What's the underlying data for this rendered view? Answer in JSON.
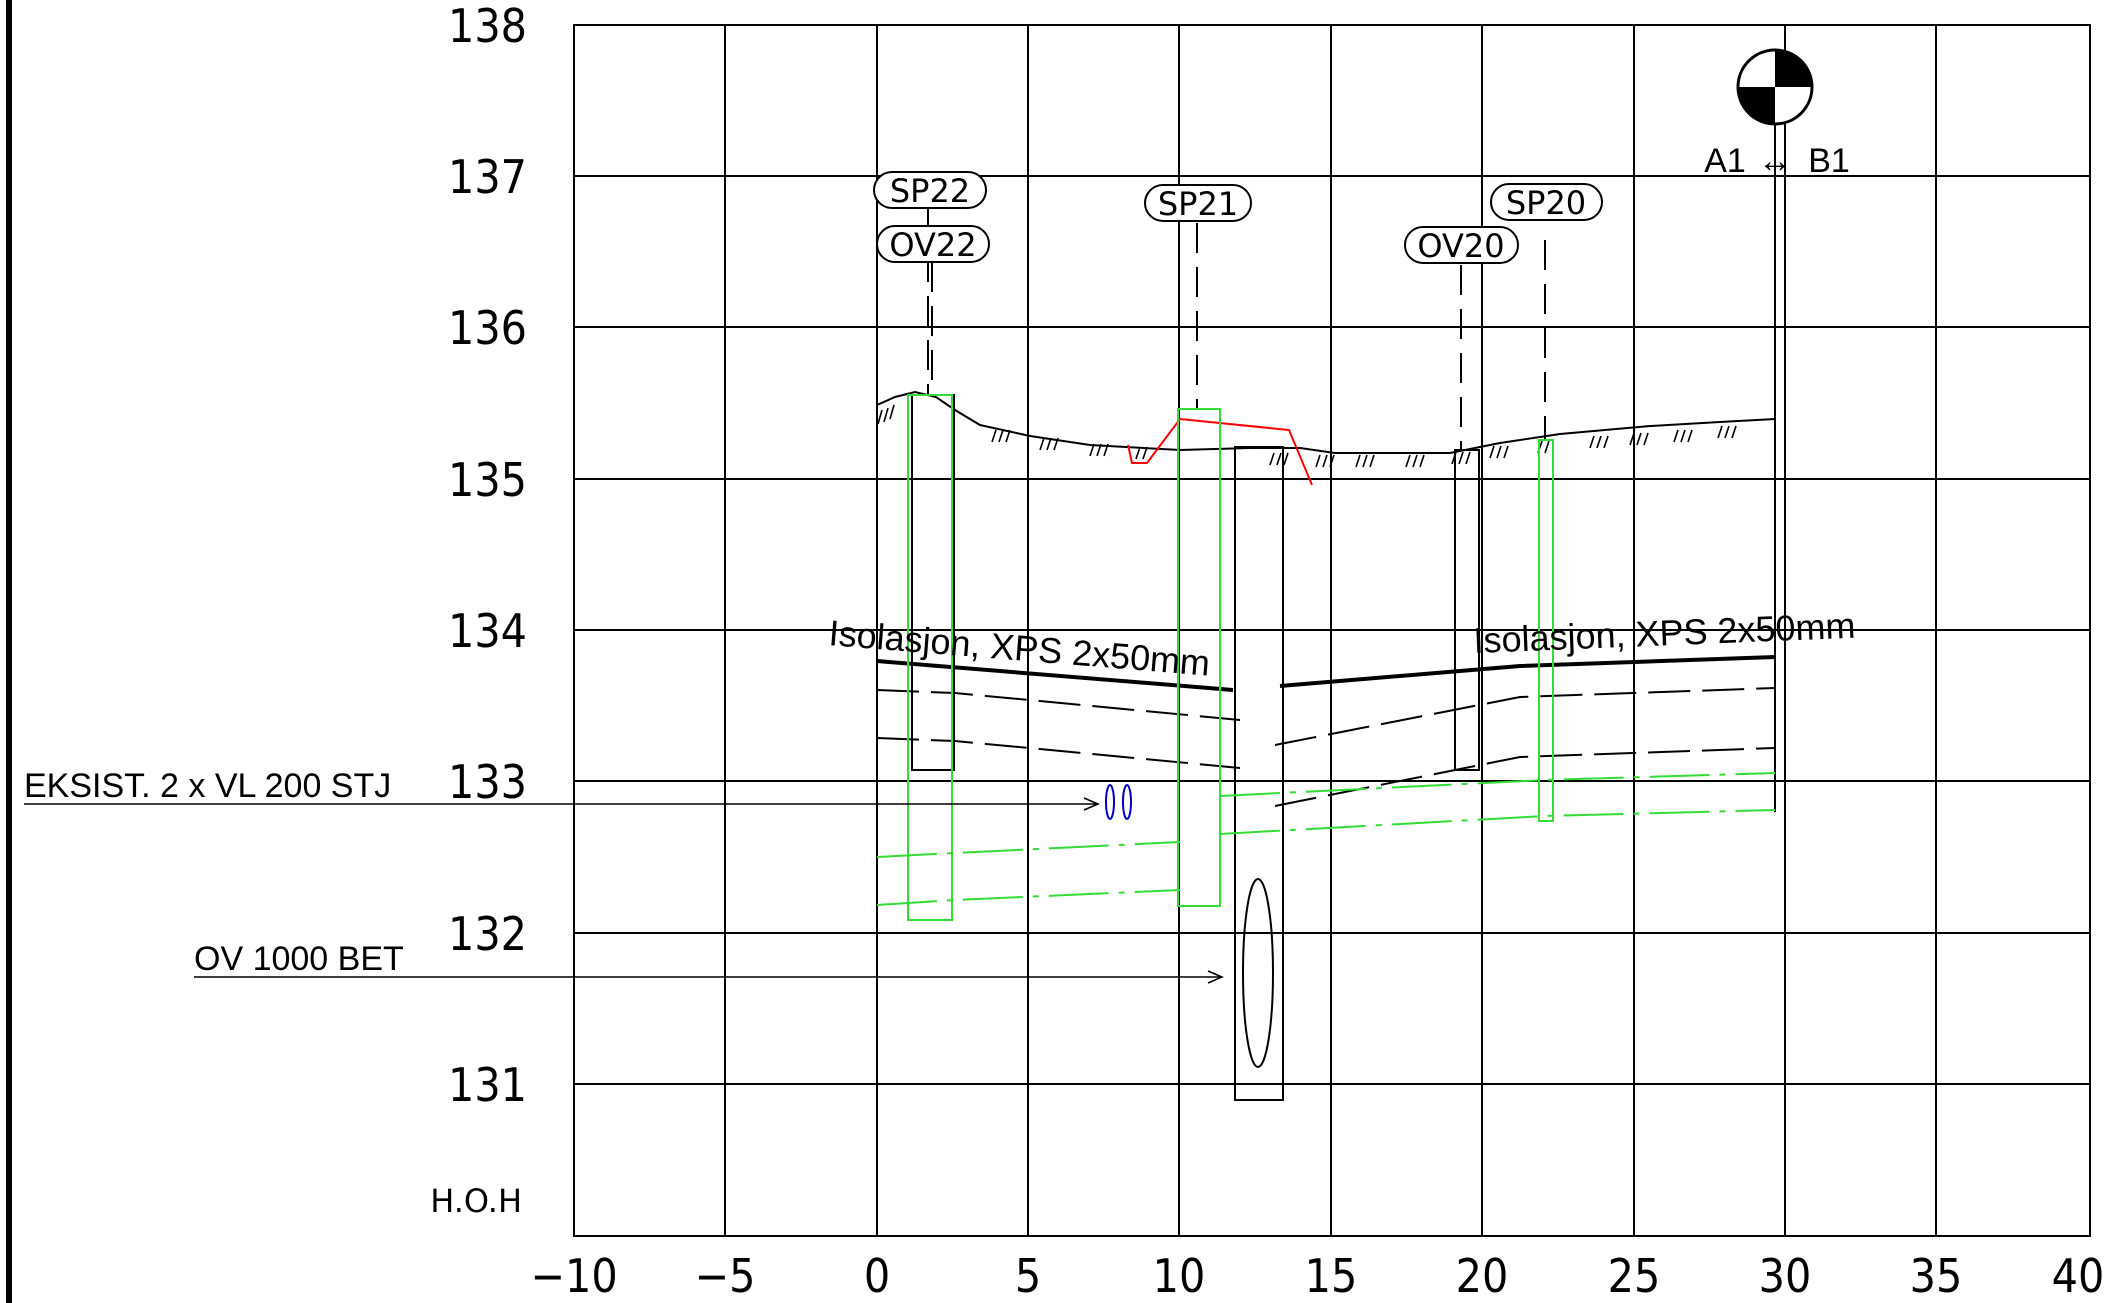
{
  "drawing": {
    "y_axis_labels": [
      "138",
      "137",
      "136",
      "135",
      "134",
      "133",
      "132",
      "131"
    ],
    "y_axis_unit": "H.O.H",
    "x_axis_labels": [
      "−10",
      "−5",
      "0",
      "5",
      "10",
      "15",
      "20",
      "25",
      "30",
      "35",
      "40"
    ],
    "tags": [
      "SP22",
      "OV22",
      "SP21",
      "OV20",
      "SP20"
    ],
    "section_marker": {
      "left": "A1",
      "arrow": "↔",
      "right": "B1"
    },
    "insulation_labels": [
      "Isolasjon, XPS 2x50mm",
      "Isolasjon, XPS 2x50mm"
    ],
    "callouts": [
      "EKSIST. 2 x VL 200 STJ",
      "OV 1000 BET"
    ],
    "colors": {
      "grid": "#000000",
      "green_structures": "#33dd33",
      "red_line": "#ff0000",
      "blue_pipes": "#0000cc"
    }
  }
}
